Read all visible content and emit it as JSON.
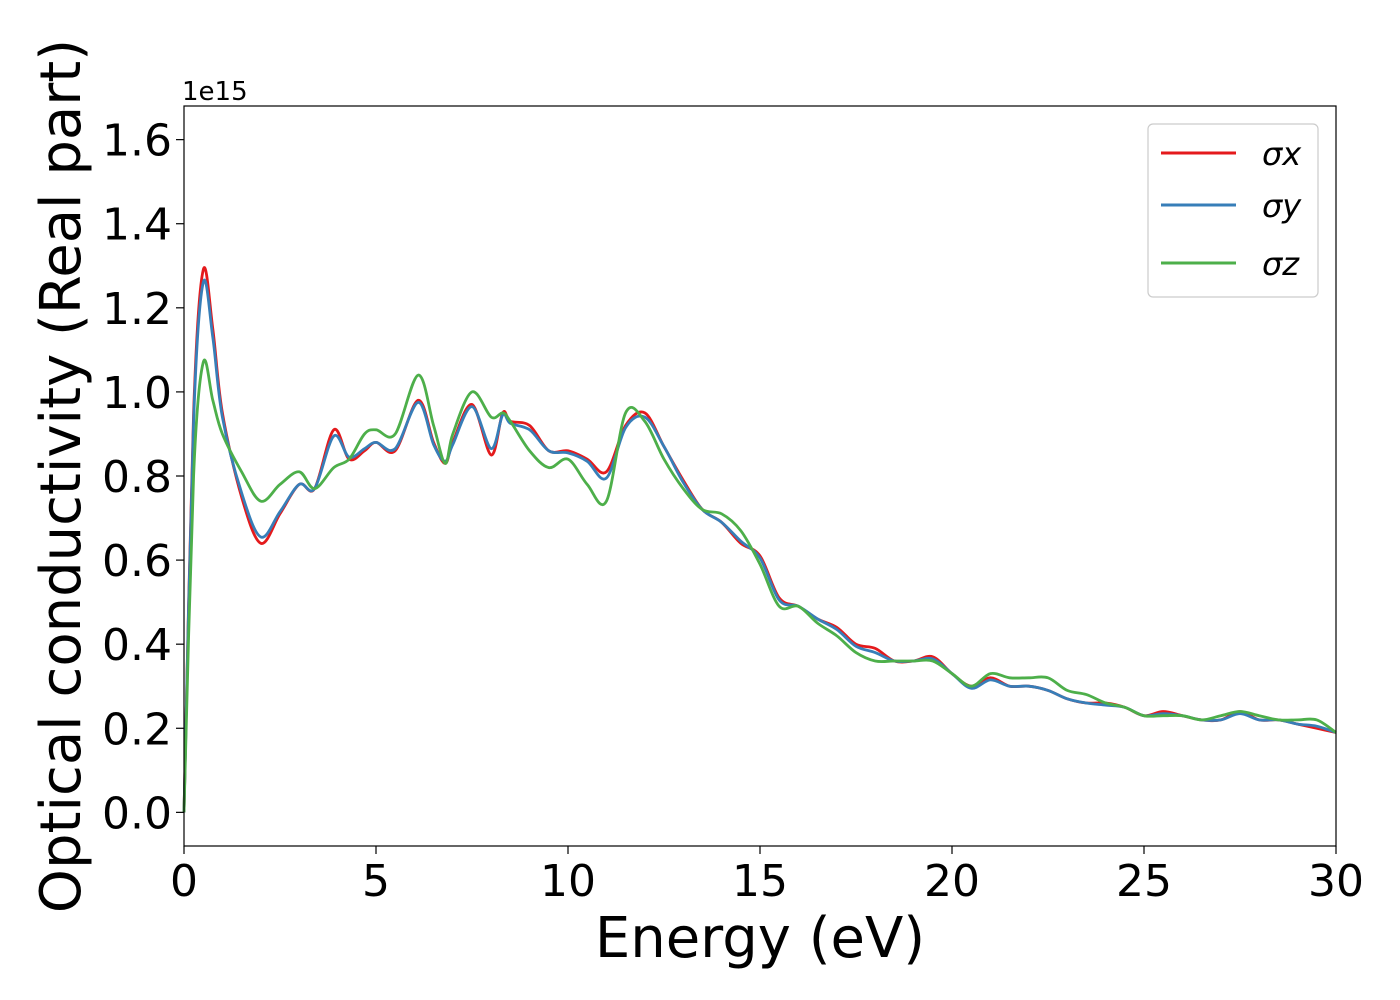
{
  "chart_data": {
    "type": "line",
    "title": "",
    "xlabel": "Energy (eV)",
    "ylabel": "Optical conductivity (Real part)",
    "y_offset_label": "1e15",
    "xlim": [
      0,
      30
    ],
    "ylim": [
      -0.08,
      1.68
    ],
    "xticks": [
      0,
      5,
      10,
      15,
      20,
      25,
      30
    ],
    "xtick_labels": [
      "0",
      "5",
      "10",
      "15",
      "20",
      "25",
      "30"
    ],
    "yticks": [
      0.0,
      0.2,
      0.4,
      0.6,
      0.8,
      1.0,
      1.2,
      1.4,
      1.6
    ],
    "ytick_labels": [
      "0.0",
      "0.2",
      "0.4",
      "0.6",
      "0.8",
      "1.0",
      "1.2",
      "1.4",
      "1.6"
    ],
    "grid": false,
    "legend_position": "top-right",
    "x": [
      0,
      0.25,
      0.5,
      0.75,
      1.0,
      1.5,
      2.0,
      2.5,
      3.0,
      3.4,
      3.9,
      4.3,
      4.7,
      5.0,
      5.5,
      6.1,
      6.5,
      6.8,
      7.0,
      7.5,
      8.0,
      8.3,
      8.5,
      9.0,
      9.5,
      10.0,
      10.5,
      11.0,
      11.5,
      12.0,
      12.5,
      13.0,
      13.5,
      14.0,
      14.5,
      15.0,
      15.5,
      16.0,
      16.5,
      17.0,
      17.5,
      18.0,
      18.5,
      19.0,
      19.5,
      20.0,
      20.5,
      21.0,
      21.5,
      22.0,
      22.5,
      23.0,
      23.5,
      24.0,
      24.5,
      25.0,
      25.5,
      26.0,
      26.5,
      27.0,
      27.5,
      28.0,
      28.5,
      29.0,
      29.5,
      30.0
    ],
    "series": [
      {
        "name": "σx",
        "color": "#e41a1c",
        "values": [
          0.0,
          0.95,
          1.29,
          1.15,
          0.95,
          0.75,
          0.64,
          0.71,
          0.78,
          0.77,
          0.91,
          0.84,
          0.86,
          0.88,
          0.86,
          0.98,
          0.88,
          0.83,
          0.88,
          0.97,
          0.85,
          0.95,
          0.93,
          0.92,
          0.86,
          0.86,
          0.84,
          0.81,
          0.92,
          0.95,
          0.87,
          0.79,
          0.72,
          0.69,
          0.64,
          0.61,
          0.51,
          0.49,
          0.46,
          0.44,
          0.4,
          0.39,
          0.36,
          0.36,
          0.37,
          0.33,
          0.3,
          0.32,
          0.3,
          0.3,
          0.29,
          0.27,
          0.26,
          0.26,
          0.25,
          0.23,
          0.24,
          0.23,
          0.22,
          0.22,
          0.24,
          0.22,
          0.22,
          0.21,
          0.2,
          0.19
        ]
      },
      {
        "name": "σy",
        "color": "#377eb8",
        "values": [
          0.0,
          0.93,
          1.26,
          1.13,
          0.94,
          0.76,
          0.655,
          0.715,
          0.78,
          0.77,
          0.895,
          0.845,
          0.865,
          0.88,
          0.865,
          0.975,
          0.875,
          0.835,
          0.875,
          0.965,
          0.865,
          0.945,
          0.925,
          0.91,
          0.86,
          0.855,
          0.835,
          0.795,
          0.915,
          0.94,
          0.87,
          0.785,
          0.72,
          0.69,
          0.645,
          0.605,
          0.505,
          0.49,
          0.46,
          0.435,
          0.395,
          0.38,
          0.36,
          0.36,
          0.365,
          0.33,
          0.295,
          0.315,
          0.3,
          0.3,
          0.29,
          0.27,
          0.26,
          0.255,
          0.25,
          0.23,
          0.235,
          0.23,
          0.22,
          0.22,
          0.235,
          0.22,
          0.22,
          0.21,
          0.205,
          0.19
        ]
      },
      {
        "name": "σz",
        "color": "#4daf4a",
        "values": [
          0.0,
          0.8,
          1.07,
          0.98,
          0.9,
          0.81,
          0.74,
          0.78,
          0.81,
          0.77,
          0.82,
          0.84,
          0.9,
          0.91,
          0.9,
          1.04,
          0.92,
          0.83,
          0.9,
          1.0,
          0.94,
          0.95,
          0.93,
          0.86,
          0.82,
          0.84,
          0.78,
          0.74,
          0.95,
          0.93,
          0.84,
          0.77,
          0.72,
          0.71,
          0.67,
          0.59,
          0.49,
          0.49,
          0.45,
          0.42,
          0.38,
          0.36,
          0.36,
          0.36,
          0.36,
          0.33,
          0.3,
          0.33,
          0.32,
          0.32,
          0.32,
          0.29,
          0.28,
          0.26,
          0.25,
          0.23,
          0.23,
          0.23,
          0.22,
          0.23,
          0.24,
          0.23,
          0.22,
          0.22,
          0.22,
          0.19
        ]
      }
    ]
  }
}
